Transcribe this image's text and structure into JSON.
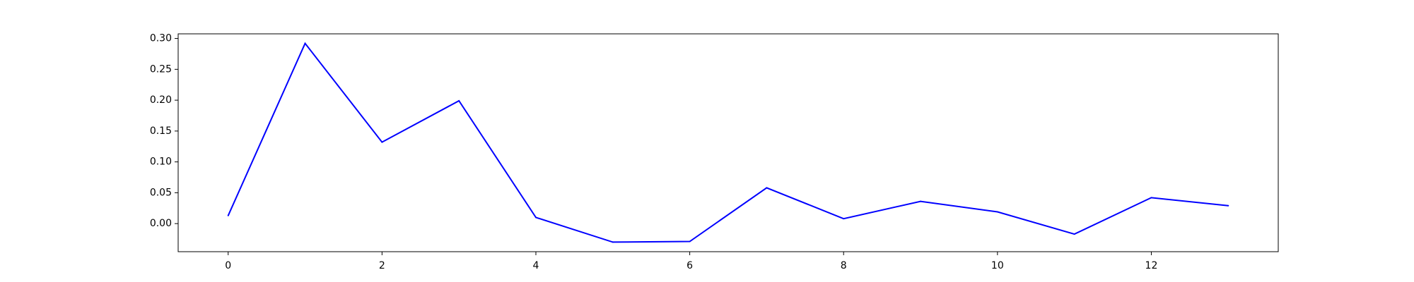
{
  "chart_data": {
    "type": "line",
    "title": "",
    "xlabel": "",
    "ylabel": "",
    "x": [
      0,
      1,
      2,
      3,
      4,
      5,
      6,
      7,
      8,
      9,
      10,
      11,
      12,
      13
    ],
    "series": [
      {
        "values": [
          0.013,
          0.292,
          0.132,
          0.199,
          0.01,
          -0.03,
          -0.029,
          0.058,
          0.008,
          0.036,
          0.019,
          -0.017,
          0.042,
          0.029
        ],
        "color": "#0000ff"
      }
    ],
    "xlim": [
      -0.65,
      13.65
    ],
    "ylim": [
      -0.0455,
      0.3075
    ],
    "xticks": [
      0,
      2,
      4,
      6,
      8,
      10,
      12
    ],
    "xtick_labels": [
      "0",
      "2",
      "4",
      "6",
      "8",
      "10",
      "12"
    ],
    "yticks": [
      0.0,
      0.05,
      0.1,
      0.15,
      0.2,
      0.25,
      0.3
    ],
    "ytick_labels": [
      "0.00",
      "0.05",
      "0.10",
      "0.15",
      "0.20",
      "0.25",
      "0.30"
    ],
    "grid": false,
    "legend": false
  }
}
